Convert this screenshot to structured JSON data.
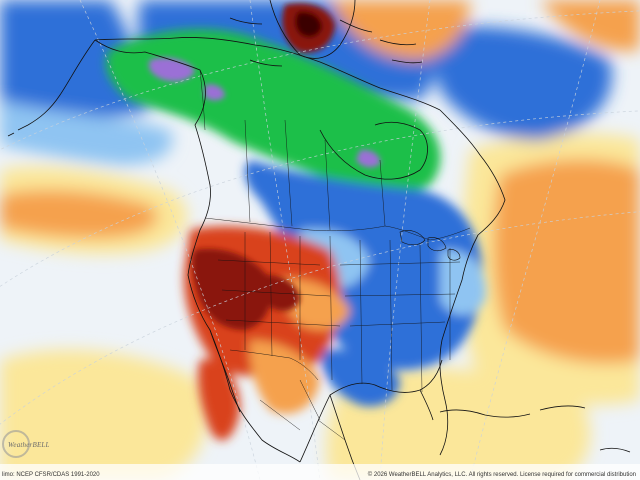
{
  "map": {
    "type": "temperature-anomaly",
    "region": "north-america",
    "palette": {
      "far_below": "#9b6fd6",
      "strong_below": "#1fbf4a",
      "below": "#2f6fd8",
      "slightly_below": "#8fc4f2",
      "near_normal": "#eef3f8",
      "slightly_above": "#fbe79a",
      "above": "#f5a14e",
      "strong_above": "#d9421c",
      "far_above": "#8a1208",
      "extreme_above": "#3a0404",
      "land_outline": "#111111",
      "graticule": "#c9d2dc"
    }
  },
  "footer": {
    "climatology_label": "limo: NCEP CFSR/CDAS 1991-2020",
    "copyright_label": "© 2026 WeatherBELL Analytics, LLC. All rights reserved. License required for commercial distribution"
  },
  "logo": {
    "icon": "weatherbell-swirl-icon",
    "text": "WeatherBELL"
  }
}
